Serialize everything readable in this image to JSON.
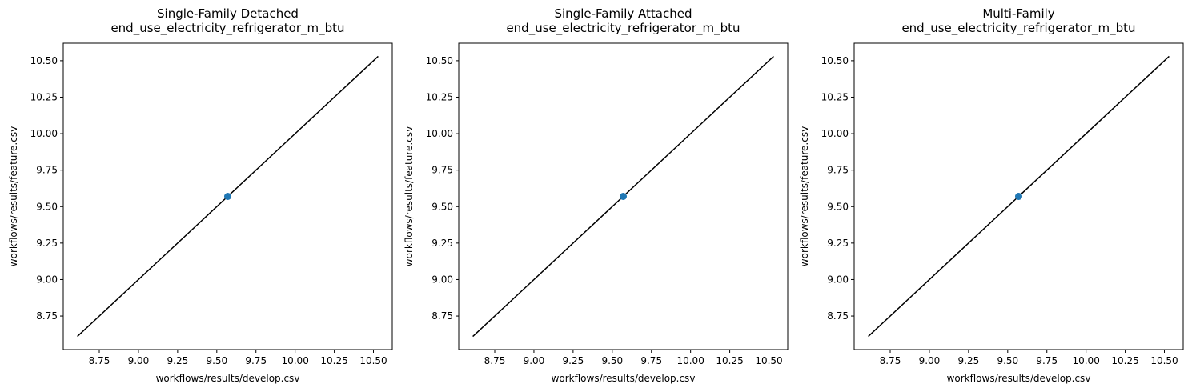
{
  "chart_data": [
    {
      "type": "scatter",
      "title": "Single-Family Detached",
      "subtitle": "end_use_electricity_refrigerator_m_btu",
      "xlabel": "workflows/results/develop.csv",
      "ylabel": "workflows/results/feature.csv",
      "xlim": [
        8.52,
        10.62
      ],
      "ylim": [
        8.52,
        10.62
      ],
      "xticks": [
        "8.75",
        "9.00",
        "9.25",
        "9.50",
        "9.75",
        "10.00",
        "10.25",
        "10.50"
      ],
      "yticks": [
        "8.75",
        "9.00",
        "9.25",
        "9.50",
        "9.75",
        "10.00",
        "10.25",
        "10.50"
      ],
      "points": [
        {
          "x": 9.57,
          "y": 9.57
        }
      ],
      "reference_line": {
        "from": [
          8.61,
          8.61
        ],
        "to": [
          10.53,
          10.53
        ],
        "color": "#000000"
      },
      "marker_color": "#1f77b4",
      "grid": false
    },
    {
      "type": "scatter",
      "title": "Single-Family Attached",
      "subtitle": "end_use_electricity_refrigerator_m_btu",
      "xlabel": "workflows/results/develop.csv",
      "ylabel": "workflows/results/feature.csv",
      "xlim": [
        8.52,
        10.62
      ],
      "ylim": [
        8.52,
        10.62
      ],
      "xticks": [
        "8.75",
        "9.00",
        "9.25",
        "9.50",
        "9.75",
        "10.00",
        "10.25",
        "10.50"
      ],
      "yticks": [
        "8.75",
        "9.00",
        "9.25",
        "9.50",
        "9.75",
        "10.00",
        "10.25",
        "10.50"
      ],
      "points": [
        {
          "x": 9.57,
          "y": 9.57
        }
      ],
      "reference_line": {
        "from": [
          8.61,
          8.61
        ],
        "to": [
          10.53,
          10.53
        ],
        "color": "#000000"
      },
      "marker_color": "#1f77b4",
      "grid": false
    },
    {
      "type": "scatter",
      "title": "Multi-Family",
      "subtitle": "end_use_electricity_refrigerator_m_btu",
      "xlabel": "workflows/results/develop.csv",
      "ylabel": "workflows/results/feature.csv",
      "xlim": [
        8.52,
        10.62
      ],
      "ylim": [
        8.52,
        10.62
      ],
      "xticks": [
        "8.75",
        "9.00",
        "9.25",
        "9.50",
        "9.75",
        "10.00",
        "10.25",
        "10.50"
      ],
      "yticks": [
        "8.75",
        "9.00",
        "9.25",
        "9.50",
        "9.75",
        "10.00",
        "10.25",
        "10.50"
      ],
      "points": [
        {
          "x": 9.57,
          "y": 9.57
        }
      ],
      "reference_line": {
        "from": [
          8.61,
          8.61
        ],
        "to": [
          10.53,
          10.53
        ],
        "color": "#000000"
      },
      "marker_color": "#1f77b4",
      "grid": false
    }
  ]
}
